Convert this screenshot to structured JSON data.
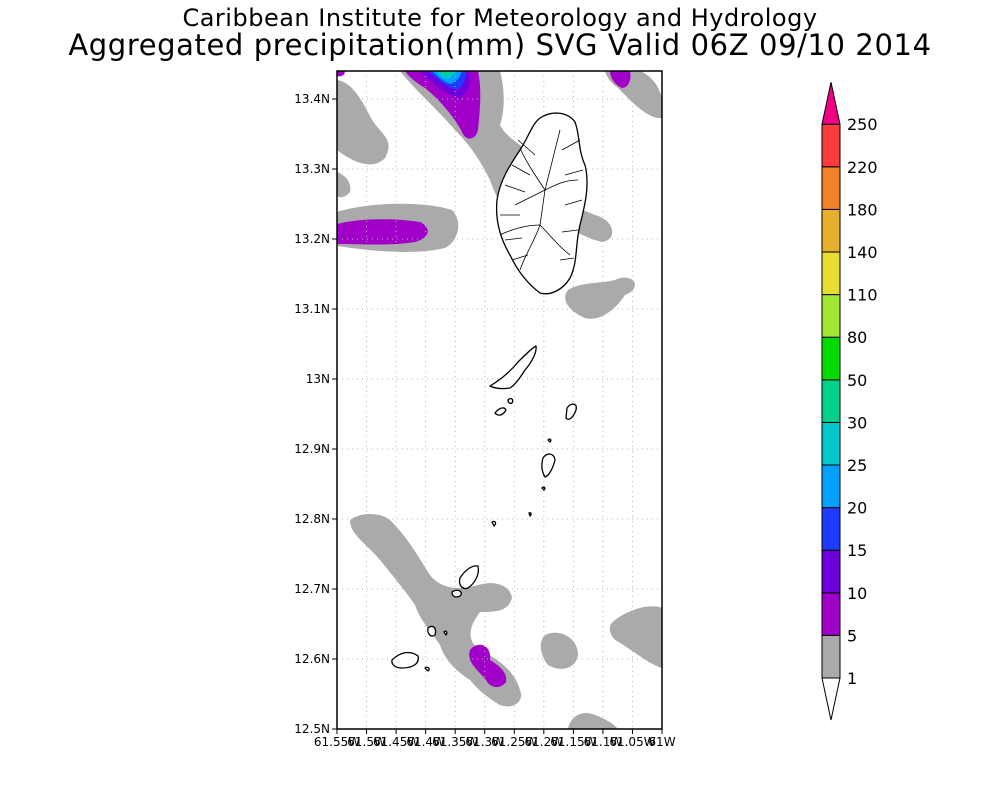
{
  "title": {
    "line1": "Caribbean Institute for Meteorology and Hydrology",
    "line2": "Aggregated precipitation(mm) SVG Valid 06Z 09/10 2014"
  },
  "map": {
    "lat_range": [
      12.5,
      13.44
    ],
    "lon_range": [
      -61.55,
      -61.0
    ],
    "lat_ticks": [
      "13.4N",
      "13.3N",
      "13.2N",
      "13.1N",
      "13N",
      "12.9N",
      "12.8N",
      "12.7N",
      "12.6N",
      "12.5N"
    ],
    "lon_ticks": [
      "61.55W",
      "61.5W",
      "61.45W",
      "61.4W",
      "61.35W",
      "61.3W",
      "61.25W",
      "61.2W",
      "61.15W",
      "61.1W",
      "61.05W",
      "61W"
    ],
    "grid": true
  },
  "colorbar": {
    "labels": [
      "1",
      "5",
      "10",
      "15",
      "20",
      "25",
      "30",
      "50",
      "80",
      "110",
      "140",
      "180",
      "220",
      "250"
    ],
    "colors": [
      "#aaaaaa",
      "#a000c8",
      "#6e00dc",
      "#1e3cff",
      "#00a0ff",
      "#00c8c8",
      "#00d28c",
      "#00dc00",
      "#a0e632",
      "#e6dc32",
      "#e6af2d",
      "#f08228",
      "#fa3c3c",
      "#f00082"
    ]
  }
}
